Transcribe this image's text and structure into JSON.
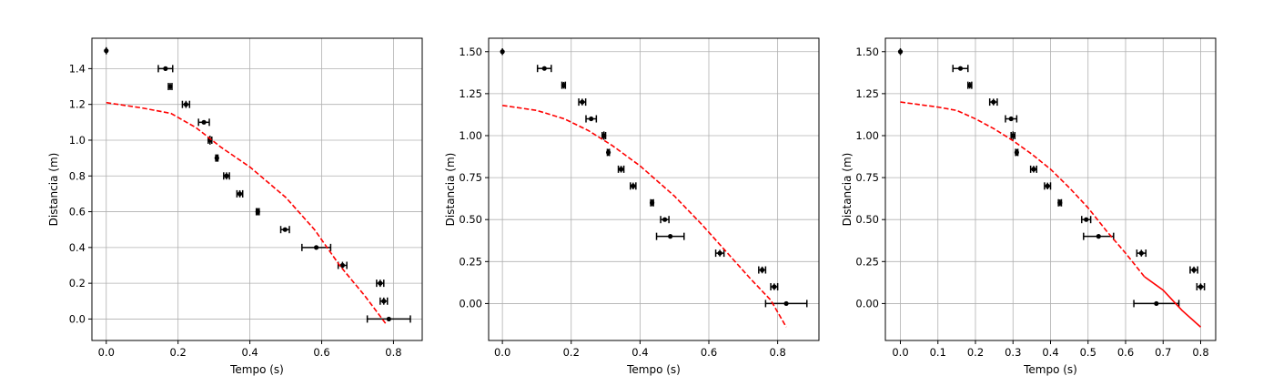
{
  "chart_data": [
    {
      "type": "scatter",
      "xlabel": "Tempo (s)",
      "ylabel": "Distancia (m)",
      "xlim": [
        -0.04,
        0.88
      ],
      "ylim": [
        -0.12,
        1.57
      ],
      "xticks": [
        0.0,
        0.2,
        0.4,
        0.6,
        0.8
      ],
      "xtick_labels": [
        "0.0",
        "0.2",
        "0.4",
        "0.6",
        "0.8"
      ],
      "yticks": [
        0.0,
        0.2,
        0.4,
        0.6,
        0.8,
        1.0,
        1.2,
        1.4
      ],
      "ytick_labels": [
        "0.0",
        "0.2",
        "0.4",
        "0.6",
        "0.8",
        "1.0",
        "1.2",
        "1.4"
      ],
      "grid": true,
      "series": [
        {
          "kind": "errorbar",
          "color": "#000000",
          "points": [
            {
              "x": 0.0,
              "y": 1.5,
              "xerr": 0.0,
              "yerr": 0.02
            },
            {
              "x": 0.165,
              "y": 1.4,
              "xerr": 0.02,
              "yerr": 0.0
            },
            {
              "x": 0.178,
              "y": 1.3,
              "xerr": 0.005,
              "yerr": 0.02
            },
            {
              "x": 0.222,
              "y": 1.2,
              "xerr": 0.01,
              "yerr": 0.02
            },
            {
              "x": 0.272,
              "y": 1.1,
              "xerr": 0.015,
              "yerr": 0.0
            },
            {
              "x": 0.289,
              "y": 1.0,
              "xerr": 0.005,
              "yerr": 0.025
            },
            {
              "x": 0.308,
              "y": 0.9,
              "xerr": 0.003,
              "yerr": 0.02
            },
            {
              "x": 0.335,
              "y": 0.8,
              "xerr": 0.008,
              "yerr": 0.02
            },
            {
              "x": 0.372,
              "y": 0.7,
              "xerr": 0.008,
              "yerr": 0.02
            },
            {
              "x": 0.422,
              "y": 0.6,
              "xerr": 0.004,
              "yerr": 0.02
            },
            {
              "x": 0.498,
              "y": 0.5,
              "xerr": 0.012,
              "yerr": 0.0
            },
            {
              "x": 0.585,
              "y": 0.4,
              "xerr": 0.04,
              "yerr": 0.0
            },
            {
              "x": 0.658,
              "y": 0.3,
              "xerr": 0.012,
              "yerr": 0.02
            },
            {
              "x": 0.763,
              "y": 0.2,
              "xerr": 0.01,
              "yerr": 0.02
            },
            {
              "x": 0.773,
              "y": 0.1,
              "xerr": 0.01,
              "yerr": 0.02
            },
            {
              "x": 0.787,
              "y": 0.0,
              "xerr": 0.06,
              "yerr": 0.0
            }
          ]
        },
        {
          "kind": "line",
          "style": "dashed",
          "color": "#ff0000",
          "x": [
            0.0,
            0.1,
            0.18,
            0.25,
            0.32,
            0.4,
            0.5,
            0.58,
            0.65,
            0.72,
            0.78
          ],
          "y": [
            1.21,
            1.18,
            1.15,
            1.07,
            0.96,
            0.85,
            0.68,
            0.5,
            0.3,
            0.13,
            -0.03
          ]
        }
      ]
    },
    {
      "type": "scatter",
      "xlabel": "Tempo (s)",
      "ylabel": "Distancia (m)",
      "xlim": [
        -0.04,
        0.92
      ],
      "ylim": [
        -0.22,
        1.58
      ],
      "xticks": [
        0.0,
        0.2,
        0.4,
        0.6,
        0.8
      ],
      "xtick_labels": [
        "0.0",
        "0.2",
        "0.4",
        "0.6",
        "0.8"
      ],
      "yticks": [
        0.0,
        0.25,
        0.5,
        0.75,
        1.0,
        1.25,
        1.5
      ],
      "ytick_labels": [
        "0.00",
        "0.25",
        "0.50",
        "0.75",
        "1.00",
        "1.25",
        "1.50"
      ],
      "grid": true,
      "series": [
        {
          "kind": "errorbar",
          "color": "#000000",
          "points": [
            {
              "x": 0.0,
              "y": 1.5,
              "xerr": 0.0,
              "yerr": 0.02
            },
            {
              "x": 0.122,
              "y": 1.4,
              "xerr": 0.02,
              "yerr": 0.0
            },
            {
              "x": 0.178,
              "y": 1.3,
              "xerr": 0.005,
              "yerr": 0.02
            },
            {
              "x": 0.232,
              "y": 1.2,
              "xerr": 0.01,
              "yerr": 0.02
            },
            {
              "x": 0.258,
              "y": 1.1,
              "xerr": 0.015,
              "yerr": 0.0
            },
            {
              "x": 0.295,
              "y": 1.0,
              "xerr": 0.005,
              "yerr": 0.025
            },
            {
              "x": 0.308,
              "y": 0.9,
              "xerr": 0.003,
              "yerr": 0.02
            },
            {
              "x": 0.345,
              "y": 0.8,
              "xerr": 0.008,
              "yerr": 0.02
            },
            {
              "x": 0.38,
              "y": 0.7,
              "xerr": 0.008,
              "yerr": 0.02
            },
            {
              "x": 0.435,
              "y": 0.6,
              "xerr": 0.004,
              "yerr": 0.02
            },
            {
              "x": 0.472,
              "y": 0.5,
              "xerr": 0.012,
              "yerr": 0.0
            },
            {
              "x": 0.488,
              "y": 0.4,
              "xerr": 0.04,
              "yerr": 0.0
            },
            {
              "x": 0.632,
              "y": 0.3,
              "xerr": 0.012,
              "yerr": 0.02
            },
            {
              "x": 0.755,
              "y": 0.2,
              "xerr": 0.01,
              "yerr": 0.02
            },
            {
              "x": 0.79,
              "y": 0.1,
              "xerr": 0.01,
              "yerr": 0.02
            },
            {
              "x": 0.825,
              "y": 0.0,
              "xerr": 0.06,
              "yerr": 0.0
            }
          ]
        },
        {
          "kind": "line",
          "style": "dashed",
          "color": "#ff0000",
          "x": [
            0.0,
            0.1,
            0.18,
            0.25,
            0.32,
            0.4,
            0.5,
            0.58,
            0.65,
            0.72,
            0.78,
            0.825
          ],
          "y": [
            1.18,
            1.15,
            1.1,
            1.03,
            0.94,
            0.82,
            0.64,
            0.47,
            0.31,
            0.15,
            0.02,
            -0.14
          ]
        }
      ]
    },
    {
      "type": "scatter",
      "xlabel": "Tempo (s)",
      "ylabel": "Distancia (m)",
      "xlim": [
        -0.04,
        0.84
      ],
      "ylim": [
        -0.22,
        1.58
      ],
      "xticks": [
        0.0,
        0.1,
        0.2,
        0.3,
        0.4,
        0.5,
        0.6,
        0.7,
        0.8
      ],
      "xtick_labels": [
        "0.0",
        "0.1",
        "0.2",
        "0.3",
        "0.4",
        "0.5",
        "0.6",
        "0.7",
        "0.8"
      ],
      "yticks": [
        0.0,
        0.25,
        0.5,
        0.75,
        1.0,
        1.25,
        1.5
      ],
      "ytick_labels": [
        "0.00",
        "0.25",
        "0.50",
        "0.75",
        "1.00",
        "1.25",
        "1.50"
      ],
      "grid": true,
      "series": [
        {
          "kind": "errorbar",
          "color": "#000000",
          "points": [
            {
              "x": 0.0,
              "y": 1.5,
              "xerr": 0.0,
              "yerr": 0.02
            },
            {
              "x": 0.16,
              "y": 1.4,
              "xerr": 0.02,
              "yerr": 0.0
            },
            {
              "x": 0.185,
              "y": 1.3,
              "xerr": 0.005,
              "yerr": 0.02
            },
            {
              "x": 0.248,
              "y": 1.2,
              "xerr": 0.01,
              "yerr": 0.02
            },
            {
              "x": 0.295,
              "y": 1.1,
              "xerr": 0.015,
              "yerr": 0.0
            },
            {
              "x": 0.3,
              "y": 1.0,
              "xerr": 0.005,
              "yerr": 0.025
            },
            {
              "x": 0.31,
              "y": 0.9,
              "xerr": 0.003,
              "yerr": 0.02
            },
            {
              "x": 0.355,
              "y": 0.8,
              "xerr": 0.008,
              "yerr": 0.02
            },
            {
              "x": 0.392,
              "y": 0.7,
              "xerr": 0.008,
              "yerr": 0.02
            },
            {
              "x": 0.425,
              "y": 0.6,
              "xerr": 0.004,
              "yerr": 0.02
            },
            {
              "x": 0.495,
              "y": 0.5,
              "xerr": 0.012,
              "yerr": 0.0
            },
            {
              "x": 0.528,
              "y": 0.4,
              "xerr": 0.04,
              "yerr": 0.0
            },
            {
              "x": 0.642,
              "y": 0.3,
              "xerr": 0.012,
              "yerr": 0.02
            },
            {
              "x": 0.782,
              "y": 0.2,
              "xerr": 0.01,
              "yerr": 0.02
            },
            {
              "x": 0.8,
              "y": 0.1,
              "xerr": 0.01,
              "yerr": 0.02
            },
            {
              "x": 0.682,
              "y": 0.0,
              "xerr": 0.06,
              "yerr": 0.0
            }
          ]
        },
        {
          "kind": "line",
          "style": "dashed",
          "color": "#ff0000",
          "x": [
            0.0,
            0.1,
            0.15,
            0.2,
            0.25,
            0.3,
            0.35,
            0.4,
            0.45,
            0.5,
            0.55,
            0.6,
            0.65
          ],
          "y": [
            1.2,
            1.17,
            1.15,
            1.1,
            1.04,
            0.97,
            0.89,
            0.8,
            0.69,
            0.57,
            0.43,
            0.3,
            0.16
          ]
        },
        {
          "kind": "line",
          "style": "solid",
          "color": "#ff0000",
          "x": [
            0.65,
            0.7,
            0.75,
            0.8
          ],
          "y": [
            0.16,
            0.08,
            -0.04,
            -0.14
          ]
        }
      ]
    }
  ]
}
